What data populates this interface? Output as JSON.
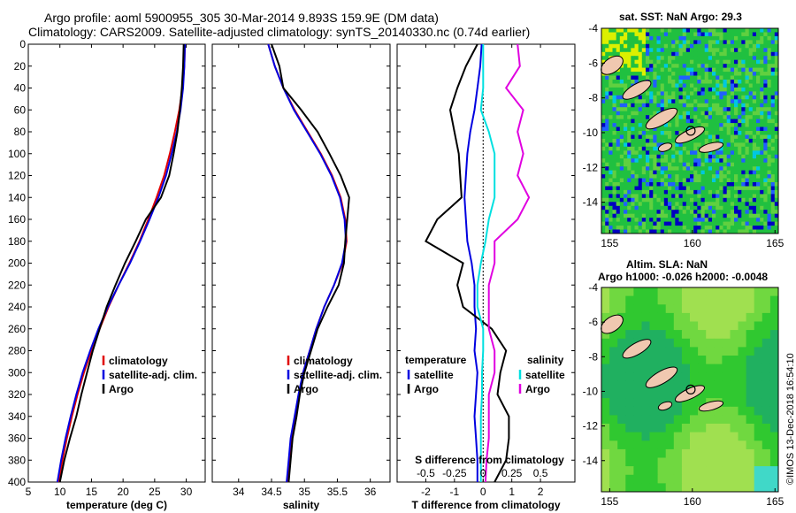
{
  "title": {
    "line1": "Argo profile: aoml 5900955_305 30-Mar-2014 9.893S 159.9E (DM data)",
    "line2": "Climatology: CARS2009. Satellite-adjusted climatology: synTS_20140330.nc (0.74d earlier)"
  },
  "depth_ticks": [
    0,
    20,
    40,
    60,
    80,
    100,
    120,
    140,
    160,
    180,
    200,
    220,
    240,
    260,
    280,
    300,
    320,
    340,
    360,
    380,
    400
  ],
  "colors": {
    "climatology": "#e00000",
    "satellite": "#0000e0",
    "argo": "#000000",
    "s_satellite": "#00e0e0",
    "s_argo": "#e000e0"
  },
  "chart_data": [
    {
      "type": "line",
      "name": "temperature",
      "xlabel": "temperature (deg C)",
      "xlim": [
        5,
        33
      ],
      "ylim": [
        400,
        0
      ],
      "xticks": [
        5,
        10,
        15,
        20,
        25,
        30
      ],
      "legend": [
        "climatology",
        "satellite-adj. clim.",
        "Argo"
      ],
      "depth": [
        0,
        20,
        40,
        60,
        80,
        100,
        120,
        140,
        160,
        180,
        200,
        220,
        240,
        260,
        280,
        300,
        320,
        340,
        360,
        380,
        400
      ],
      "series": [
        {
          "name": "climatology",
          "color": "#e00000",
          "values": [
            29.8,
            29.7,
            29.4,
            28.9,
            28.2,
            27.4,
            26.5,
            25.3,
            24.0,
            22.6,
            21.0,
            19.3,
            17.7,
            16.3,
            15.0,
            13.8,
            12.8,
            11.9,
            11.1,
            10.4,
            9.8
          ]
        },
        {
          "name": "satellite-adj. clim.",
          "color": "#0000e0",
          "values": [
            29.8,
            29.7,
            29.5,
            29.1,
            28.5,
            27.7,
            26.8,
            25.6,
            24.2,
            22.7,
            21.1,
            19.3,
            17.6,
            16.1,
            14.8,
            13.6,
            12.6,
            11.7,
            10.9,
            10.2,
            9.6
          ]
        },
        {
          "name": "Argo",
          "color": "#000000",
          "values": [
            29.6,
            29.5,
            29.3,
            29.0,
            28.6,
            28.0,
            27.3,
            26.0,
            23.6,
            22.0,
            20.3,
            18.8,
            17.4,
            16.3,
            15.2,
            14.3,
            13.4,
            12.6,
            11.6,
            10.7,
            10.0
          ]
        }
      ]
    },
    {
      "type": "line",
      "name": "salinity",
      "xlabel": "salinity",
      "xlim": [
        33.6,
        36.3
      ],
      "ylim": [
        400,
        0
      ],
      "xticks": [
        34,
        34.5,
        35,
        35.5,
        36
      ],
      "legend": [
        "climatology",
        "satellite-adj. clim.",
        "Argo"
      ],
      "depth": [
        0,
        20,
        40,
        60,
        80,
        100,
        120,
        140,
        160,
        180,
        200,
        220,
        240,
        260,
        280,
        300,
        320,
        340,
        360,
        380,
        400
      ],
      "series": [
        {
          "name": "climatology",
          "color": "#e00000",
          "values": [
            34.45,
            34.55,
            34.68,
            34.85,
            35.05,
            35.25,
            35.42,
            35.55,
            35.62,
            35.64,
            35.58,
            35.45,
            35.3,
            35.18,
            35.08,
            34.98,
            34.92,
            34.86,
            34.8,
            34.77,
            34.74
          ]
        },
        {
          "name": "satellite-adj. clim.",
          "color": "#0000e0",
          "values": [
            34.45,
            34.55,
            34.68,
            34.84,
            35.04,
            35.24,
            35.41,
            35.54,
            35.61,
            35.63,
            35.57,
            35.45,
            35.3,
            35.18,
            35.08,
            34.98,
            34.91,
            34.85,
            34.79,
            34.76,
            34.73
          ]
        },
        {
          "name": "Argo",
          "color": "#000000",
          "values": [
            34.5,
            34.62,
            34.68,
            34.95,
            35.2,
            35.38,
            35.55,
            35.68,
            35.65,
            35.62,
            35.6,
            35.52,
            35.35,
            35.2,
            35.1,
            35.0,
            34.93,
            34.88,
            34.82,
            34.79,
            34.76
          ]
        }
      ]
    },
    {
      "type": "line",
      "name": "differences",
      "xlabel": "T difference from climatology",
      "top_axis_label": "S difference from climatology",
      "xlim": [
        -3,
        3.2
      ],
      "ylim": [
        400,
        0
      ],
      "xticks": [
        -2,
        -1,
        0,
        1,
        2
      ],
      "s_ticks": [
        -0.5,
        -0.25,
        0,
        0.25,
        0.5
      ],
      "s_tick_labels": [
        "-0.5",
        "-0.25",
        "0",
        "0.25",
        "0.5"
      ],
      "legend_t_title": "temperature",
      "legend_s_title": "salinity",
      "legend_t": [
        "satellite",
        "Argo"
      ],
      "legend_s": [
        "satellite",
        "Argo"
      ],
      "depth": [
        0,
        20,
        40,
        60,
        80,
        100,
        120,
        140,
        160,
        180,
        200,
        220,
        240,
        260,
        280,
        300,
        320,
        340,
        360,
        380,
        400
      ],
      "series": [
        {
          "name": "T satellite",
          "color": "#0000e0",
          "values": [
            -0.05,
            -0.1,
            -0.2,
            -0.3,
            -0.45,
            -0.55,
            -0.6,
            -0.65,
            -0.6,
            -0.55,
            -0.4,
            -0.3,
            -0.3,
            -0.25,
            -0.3,
            -0.2,
            -0.25,
            -0.3,
            -0.25,
            -0.2,
            -0.2
          ]
        },
        {
          "name": "T Argo",
          "color": "#000000",
          "values": [
            -0.2,
            -0.6,
            -0.9,
            -1.15,
            -1.0,
            -0.85,
            -0.8,
            -0.75,
            -1.6,
            -2.0,
            -0.7,
            -0.9,
            -0.7,
            0.3,
            0.8,
            0.6,
            0.5,
            0.9,
            0.9,
            0.8,
            0.4
          ]
        },
        {
          "name": "S satellite",
          "color": "#00e0e0",
          "values": [
            0.0,
            0.0,
            0.0,
            -0.02,
            0.05,
            0.1,
            0.1,
            0.1,
            0.05,
            0.02,
            -0.02,
            -0.05,
            -0.05,
            0.0,
            0.0,
            -0.01,
            -0.01,
            -0.02,
            -0.02,
            -0.02,
            -0.02
          ]
        },
        {
          "name": "S Argo",
          "color": "#e000e0",
          "values": [
            0.3,
            0.32,
            0.2,
            0.35,
            0.3,
            0.35,
            0.3,
            0.4,
            0.3,
            0.1,
            0.1,
            0.05,
            0.05,
            0.05,
            0.1,
            0.1,
            0.05,
            0.05,
            0.05,
            0.03,
            0.02
          ]
        }
      ]
    },
    {
      "type": "heatmap",
      "name": "sst_map",
      "title": "sat. SST: NaN Argo: 29.3",
      "xticks": [
        155,
        160,
        165
      ],
      "yticks": [
        -4,
        -6,
        -8,
        -10,
        -12,
        -14
      ],
      "xlim": [
        154.5,
        165.2
      ],
      "ylim": [
        -15.8,
        -4
      ]
    },
    {
      "type": "heatmap",
      "name": "sla_map",
      "title_line1": "Altim. SLA: NaN",
      "title_line2": "Argo h1000: -0.026 h2000: -0.0048",
      "xticks": [
        155,
        160,
        165
      ],
      "yticks": [
        -4,
        -6,
        -8,
        -10,
        -12,
        -14
      ],
      "xlim": [
        154.5,
        165.2
      ],
      "ylim": [
        -15.8,
        -4
      ]
    }
  ],
  "stamp": "©IMOS 13-Dec-2018 16:54:10"
}
